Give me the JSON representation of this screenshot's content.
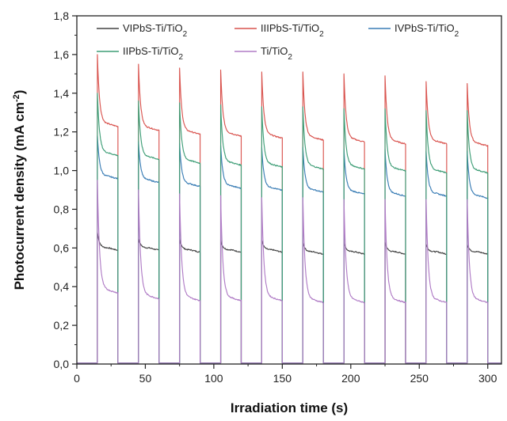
{
  "chart_data": {
    "type": "line",
    "xlabel": "Irradiation time (s)",
    "ylabel": "Photocurrent density (mA cm⁻²)",
    "xlim": [
      0,
      310
    ],
    "ylim": [
      0.0,
      1.8
    ],
    "xticks": [
      0,
      50,
      100,
      150,
      200,
      250,
      300
    ],
    "yticks": [
      "0,0",
      "0,2",
      "0,4",
      "0,6",
      "0,8",
      "1,0",
      "1,2",
      "1,4",
      "1,6",
      "1,8"
    ],
    "grid": false,
    "legend_position": "top",
    "light_on_intervals": [
      [
        15,
        30
      ],
      [
        45,
        60
      ],
      [
        75,
        90
      ],
      [
        105,
        120
      ],
      [
        135,
        150
      ],
      [
        165,
        180
      ],
      [
        195,
        210
      ],
      [
        225,
        240
      ],
      [
        255,
        270
      ],
      [
        285,
        300
      ]
    ],
    "series": [
      {
        "name": "VIPbS-Ti/TiO2",
        "color": "#444444",
        "peak_values": [
          0.68,
          0.65,
          0.65,
          0.64,
          0.64,
          0.63,
          0.63,
          0.63,
          0.62,
          0.62
        ],
        "steady_values": [
          0.6,
          0.6,
          0.59,
          0.59,
          0.59,
          0.58,
          0.58,
          0.58,
          0.58,
          0.58
        ]
      },
      {
        "name": "IIIPbS-Ti/TiO2",
        "color": "#d9544f",
        "peak_values": [
          1.6,
          1.55,
          1.53,
          1.52,
          1.51,
          1.51,
          1.5,
          1.49,
          1.46,
          1.45
        ],
        "steady_values": [
          1.24,
          1.22,
          1.2,
          1.19,
          1.18,
          1.17,
          1.16,
          1.15,
          1.15,
          1.14
        ]
      },
      {
        "name": "IVPbS-Ti/TiO2",
        "color": "#3a7db5",
        "peak_values": [
          1.18,
          1.15,
          1.14,
          1.13,
          1.12,
          1.12,
          1.11,
          1.11,
          1.1,
          1.1
        ],
        "steady_values": [
          0.97,
          0.95,
          0.93,
          0.92,
          0.91,
          0.9,
          0.89,
          0.88,
          0.88,
          0.87
        ]
      },
      {
        "name": "IIPbS-Ti/TiO2",
        "color": "#3f9e77",
        "peak_values": [
          1.4,
          1.36,
          1.35,
          1.34,
          1.33,
          1.33,
          1.32,
          1.32,
          1.31,
          1.31
        ],
        "steady_values": [
          1.09,
          1.07,
          1.05,
          1.04,
          1.03,
          1.02,
          1.02,
          1.01,
          1.0,
          1.0
        ]
      },
      {
        "name": "Ti/TiO2",
        "color": "#b07cc6",
        "peak_values": [
          0.95,
          0.9,
          0.88,
          0.87,
          0.86,
          0.86,
          0.85,
          0.85,
          0.85,
          0.85
        ],
        "steady_values": [
          0.38,
          0.35,
          0.34,
          0.34,
          0.34,
          0.33,
          0.33,
          0.33,
          0.33,
          0.33
        ]
      }
    ],
    "legend": [
      {
        "label_main": "VIPbS-Ti/TiO",
        "label_sub": "2"
      },
      {
        "label_main": "IIIPbS-Ti/TiO",
        "label_sub": "2"
      },
      {
        "label_main": "IVPbS-Ti/TiO",
        "label_sub": "2"
      },
      {
        "label_main": "IIPbS-Ti/TiO",
        "label_sub": "2"
      },
      {
        "label_main": "Ti/TiO",
        "label_sub": "2"
      }
    ]
  }
}
